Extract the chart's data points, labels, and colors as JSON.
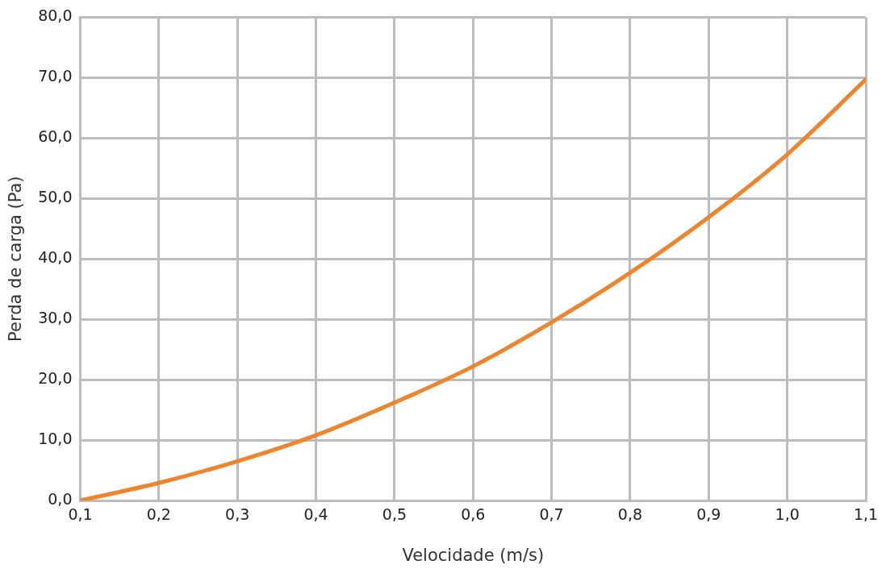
{
  "chart_data": {
    "type": "line",
    "xlabel": "Velocidade (m/s)",
    "ylabel": "Perda de carga (Pa)",
    "x": [
      0.1,
      0.2,
      0.3,
      0.4,
      0.5,
      0.6,
      0.7,
      0.8,
      0.9,
      1.0,
      1.1
    ],
    "series": [
      {
        "color": "#f0842c",
        "values": [
          0,
          2.9,
          6.5,
          10.8,
          16.2,
          22.2,
          29.5,
          37.7,
          46.9,
          57.3,
          69.7
        ]
      }
    ],
    "xlim": [
      0.1,
      1.1
    ],
    "xticks": [
      {
        "value": 0.1,
        "label": "0,1"
      },
      {
        "value": 0.2,
        "label": "0,2"
      },
      {
        "value": 0.3,
        "label": "0,3"
      },
      {
        "value": 0.4,
        "label": "0,4"
      },
      {
        "value": 0.5,
        "label": "0,5"
      },
      {
        "value": 0.6,
        "label": "0,6"
      },
      {
        "value": 0.7,
        "label": "0,7"
      },
      {
        "value": 0.8,
        "label": "0,8"
      },
      {
        "value": 0.9,
        "label": "0,9"
      },
      {
        "value": 1.0,
        "label": "1,0"
      },
      {
        "value": 1.1,
        "label": "1,1"
      }
    ],
    "ylim": [
      0,
      80
    ],
    "yticks": [
      {
        "value": 0,
        "label": "0,0"
      },
      {
        "value": 10,
        "label": "10,0"
      },
      {
        "value": 20,
        "label": "20,0"
      },
      {
        "value": 30,
        "label": "30,0"
      },
      {
        "value": 40,
        "label": "40,0"
      },
      {
        "value": 50,
        "label": "50,0"
      },
      {
        "value": 60,
        "label": "60,0"
      },
      {
        "value": 70,
        "label": "70,0"
      },
      {
        "value": 80,
        "label": "80,0"
      }
    ],
    "grid": true,
    "legend": false,
    "marker": "none",
    "line_style": "solid"
  }
}
